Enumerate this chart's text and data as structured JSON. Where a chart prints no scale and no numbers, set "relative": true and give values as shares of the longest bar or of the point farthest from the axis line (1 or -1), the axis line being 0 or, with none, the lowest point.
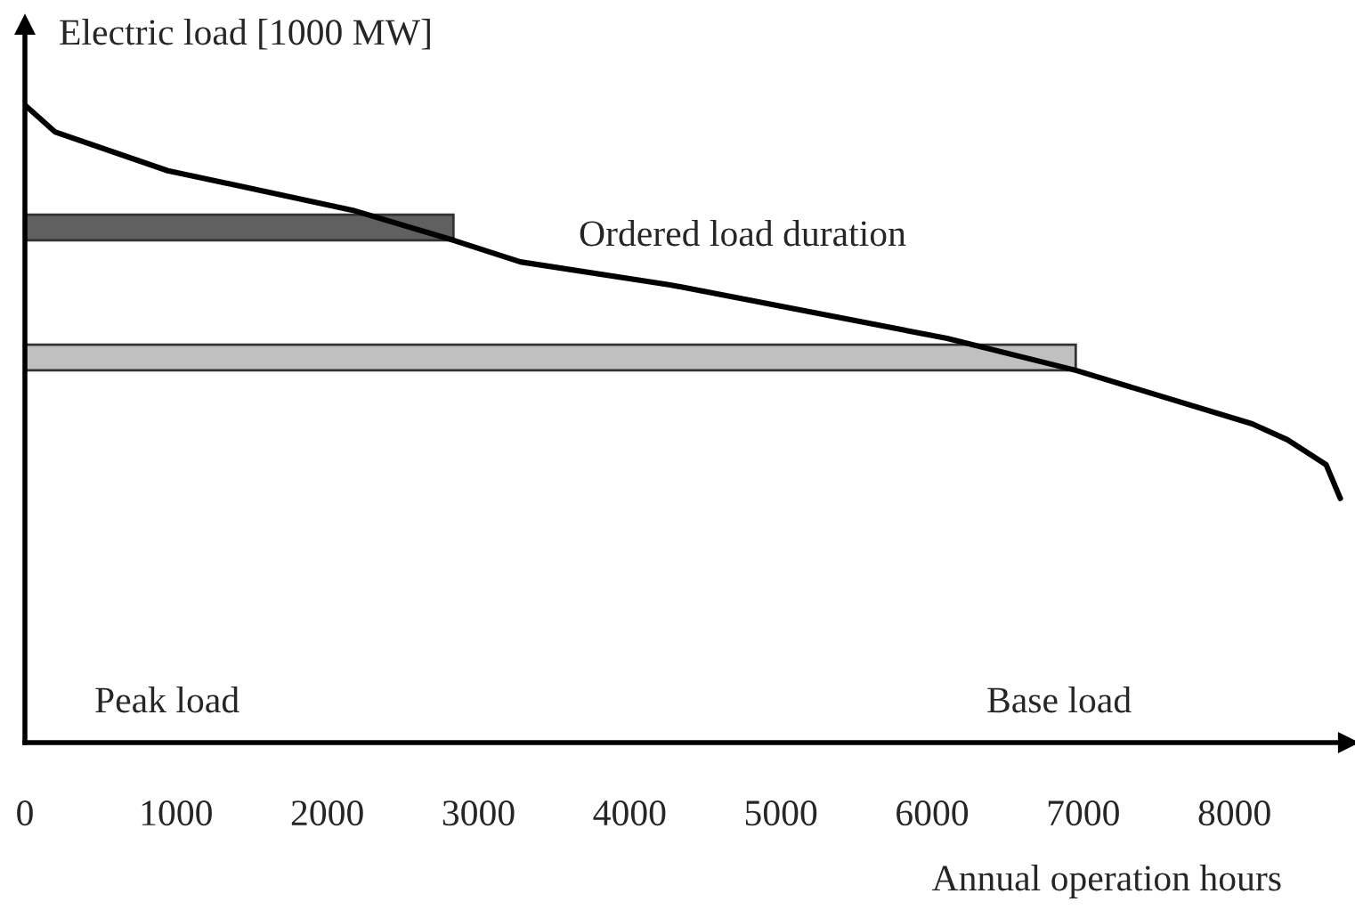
{
  "chart_data": {
    "type": "line",
    "relative": true,
    "ylabel": "Electric load [1000 MW]",
    "xlabel": "Annual operation hours",
    "annotations": [
      "Ordered load duration",
      "Peak load",
      "Base load"
    ],
    "xlim": [
      0,
      8750
    ],
    "xticks": [
      0,
      1000,
      2000,
      3000,
      4000,
      5000,
      6000,
      7000,
      8000
    ],
    "grid": false,
    "legend": false,
    "marker": "none",
    "line_style": "solid",
    "series": [
      {
        "color": "#000000",
        "x": [
          0,
          198,
          945,
          2169,
          2834,
          3277,
          4268,
          6099,
          6950,
          8117,
          8350,
          8606,
          8700
        ],
        "values": [
          1.0,
          0.958,
          0.897,
          0.835,
          0.788,
          0.754,
          0.718,
          0.634,
          0.584,
          0.5,
          0.475,
          0.436,
          0.383
        ]
      }
    ]
  }
}
